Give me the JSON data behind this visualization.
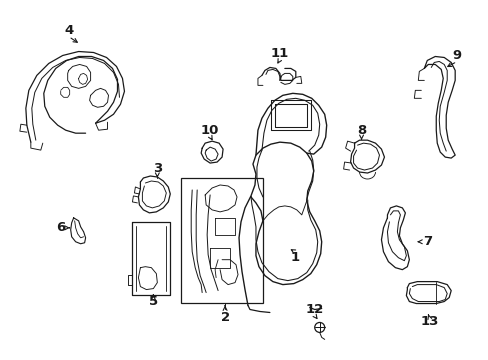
{
  "background_color": "#ffffff",
  "line_color": "#1a1a1a",
  "fig_width": 4.89,
  "fig_height": 3.6,
  "dpi": 100,
  "label_fontsize": 9.0,
  "label_color": "#1a1a1a"
}
